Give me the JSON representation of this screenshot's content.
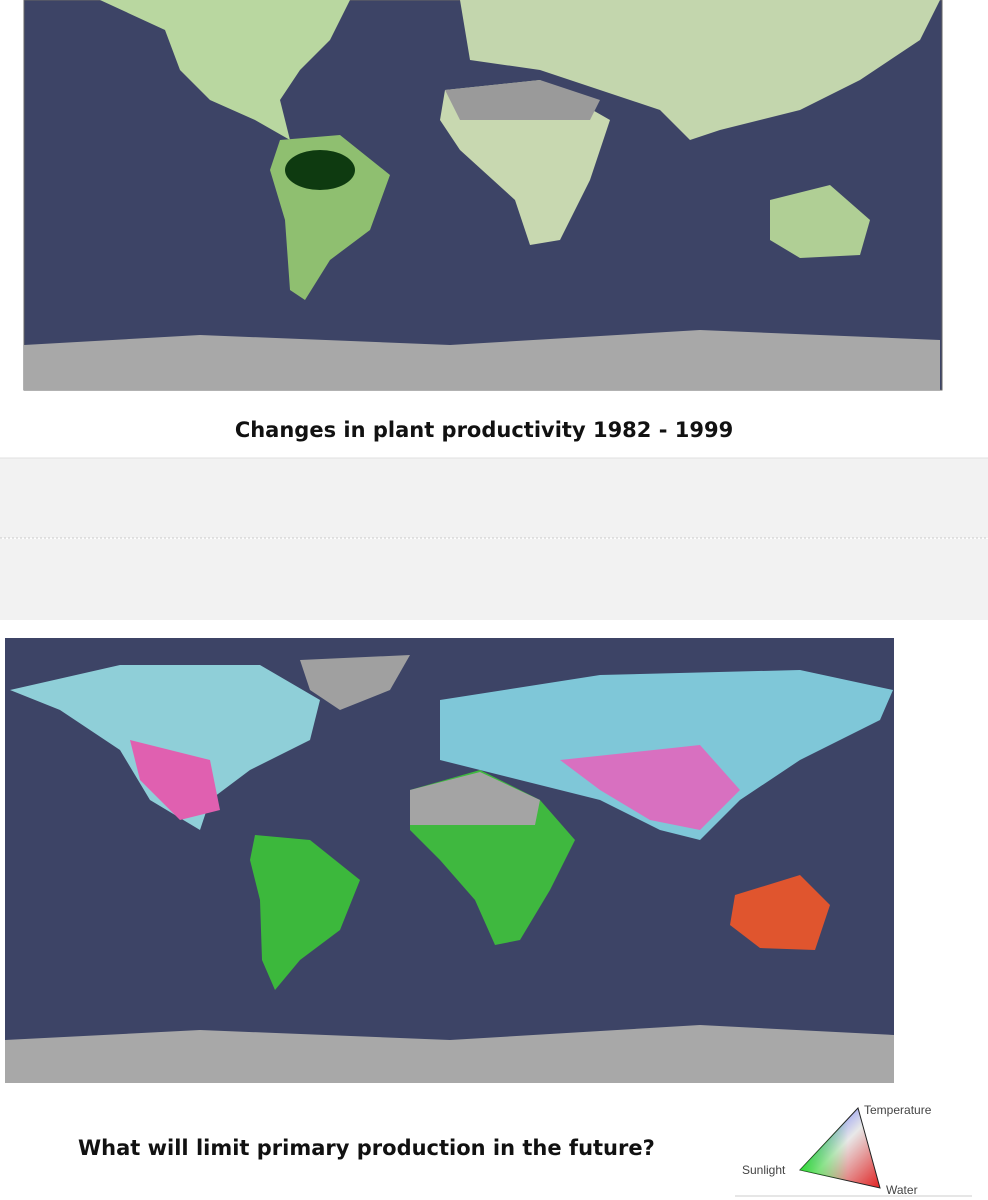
{
  "caption": "Changes in plant productivity  1982 - 1999",
  "question": "What will limit primary production in the future?",
  "legend": {
    "top": "Temperature",
    "left": "Sunlight",
    "right": "Water"
  }
}
